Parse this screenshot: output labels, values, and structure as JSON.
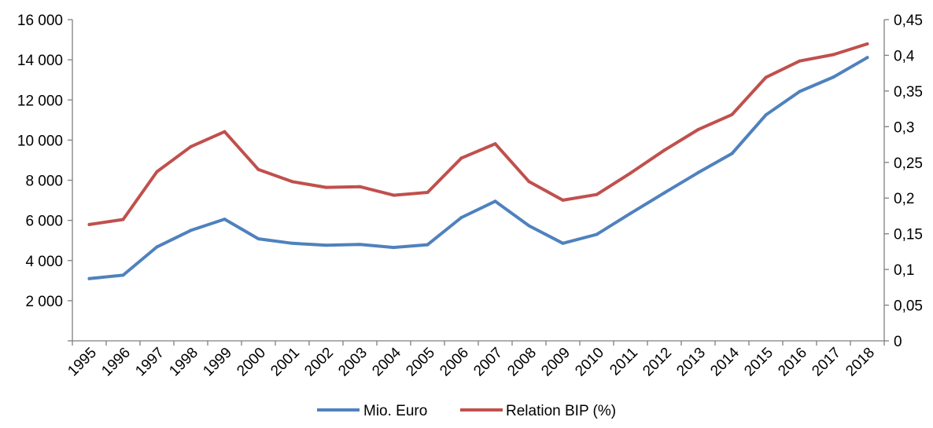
{
  "chart_data": {
    "type": "line",
    "title": "",
    "xlabel": "",
    "ylabel": "",
    "y2label": "",
    "categories": [
      "1995",
      "1996",
      "1997",
      "1998",
      "1999",
      "2000",
      "2001",
      "2002",
      "2003",
      "2004",
      "2005",
      "2006",
      "2007",
      "2008",
      "2009",
      "2010",
      "2011",
      "2012",
      "2013",
      "2014",
      "2015",
      "2016",
      "2017",
      "2018"
    ],
    "ylim": [
      0,
      16000
    ],
    "y_ticks": [
      "",
      "2 000",
      "4 000",
      "6 000",
      "8 000",
      "10 000",
      "12 000",
      "14 000",
      "16 000"
    ],
    "y2lim": [
      0,
      0.45
    ],
    "y2_ticks": [
      "0",
      "0,05",
      "0,1",
      "0,15",
      "0,2",
      "0,25",
      "0,3",
      "0,35",
      "0,4",
      "0,45"
    ],
    "grid": false,
    "legend_position": "bottom",
    "series": [
      {
        "name": "Mio. Euro",
        "axis": "left",
        "color": "#4F81BD",
        "values": [
          3100,
          3270,
          4680,
          5500,
          6060,
          5080,
          4860,
          4760,
          4800,
          4650,
          4790,
          6140,
          6950,
          5730,
          4860,
          5300,
          6350,
          7370,
          8380,
          9330,
          11250,
          12420,
          13140,
          14110
        ]
      },
      {
        "name": "Relation BIP (%)",
        "axis": "right",
        "color": "#C0504D",
        "values": [
          0.163,
          0.17,
          0.237,
          0.272,
          0.293,
          0.24,
          0.223,
          0.215,
          0.216,
          0.204,
          0.208,
          0.256,
          0.276,
          0.223,
          0.197,
          0.205,
          0.235,
          0.267,
          0.296,
          0.317,
          0.369,
          0.392,
          0.401,
          0.416
        ]
      }
    ]
  }
}
